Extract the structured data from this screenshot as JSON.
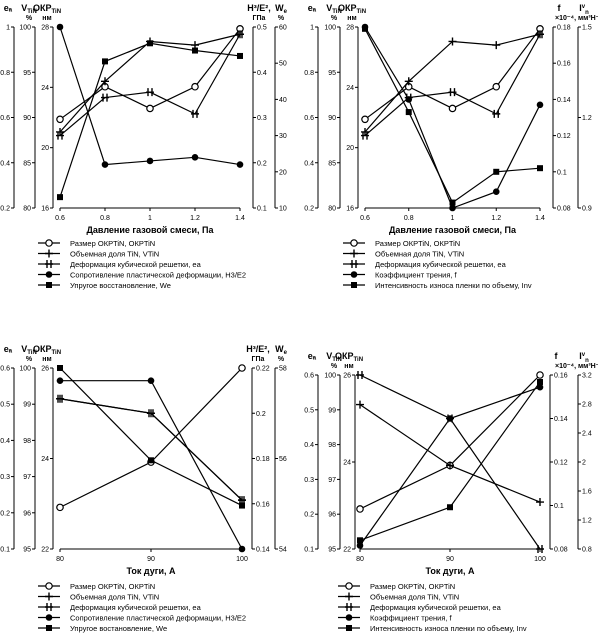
{
  "chart_data": [
    {
      "type": "line",
      "xlabel": "Давление газовой смеси, Па",
      "x": [
        0.6,
        0.8,
        1,
        1.2,
        1.4
      ],
      "xticks": [
        "0.6",
        "0.8",
        "1",
        "1.2",
        "1.4"
      ],
      "left_axes": [
        {
          "label": "eₐ",
          "ticks": [
            "0.2",
            "0.4",
            "0.6",
            "0.8",
            "1"
          ]
        },
        {
          "label": "V",
          "sub": "TiN",
          "unit": "%",
          "ticks": [
            "80",
            "85",
            "90",
            "95",
            "100"
          ]
        },
        {
          "label": "ОКР",
          "sub": "TiN",
          "unit": "нм",
          "ticks": [
            "16",
            "20",
            "24",
            "28"
          ]
        }
      ],
      "right_axes": [
        {
          "label": "H³/E²,",
          "unit": "ГПа",
          "ticks": [
            "0.1",
            "0.2",
            "0.3",
            "0.4",
            "0.5"
          ]
        },
        {
          "label": "W",
          "sub": "e",
          "unit": "%",
          "ticks": [
            "10",
            "20",
            "30",
            "40",
            "50",
            "60"
          ]
        }
      ],
      "series": [
        {
          "name": "Размер ОКРTiN, ОКРTiN",
          "marker": "open-circle",
          "values": [
            0.49,
            0.67,
            0.55,
            0.67,
            0.99
          ]
        },
        {
          "name": "Объемная доля TiN, VTiN",
          "marker": "tick",
          "values": [
            0.42,
            0.7,
            0.92,
            0.9,
            0.96
          ]
        },
        {
          "name": "Деформация кубической решетки, ea",
          "marker": "double-tick",
          "values": [
            0.4,
            0.61,
            0.64,
            0.52,
            0.96
          ]
        },
        {
          "name": "Сопротивление пластической деформации, H3/E2",
          "marker": "filled-circle",
          "values": [
            1.0,
            0.24,
            0.26,
            0.28,
            0.24
          ]
        },
        {
          "name": "Упругое восстановление, We",
          "marker": "filled-square",
          "values": [
            0.06,
            0.81,
            0.91,
            0.87,
            0.84
          ]
        }
      ]
    },
    {
      "type": "line",
      "xlabel": "Давление газовой смеси, Па",
      "x": [
        0.6,
        0.8,
        1,
        1.2,
        1.4
      ],
      "xticks": [
        "0.6",
        "0.8",
        "1",
        "1.2",
        "1.4"
      ],
      "left_axes": [
        {
          "label": "eₐ",
          "ticks": [
            "0.2",
            "0.4",
            "0.6",
            "0.8",
            "1"
          ]
        },
        {
          "label": "V",
          "sub": "TiN",
          "unit": "%",
          "ticks": [
            "80",
            "85",
            "90",
            "95",
            "100"
          ]
        },
        {
          "label": "ОКР",
          "sub": "TiN",
          "unit": "нм",
          "ticks": [
            "16",
            "20",
            "24",
            "28"
          ]
        }
      ],
      "right_axes": [
        {
          "label": "f",
          "ticks": [
            "0.08",
            "0.1",
            "0.12",
            "0.14",
            "0.16",
            "0.18"
          ]
        },
        {
          "label": "I",
          "sub": "n",
          "sup": "v",
          "unit": "×10⁻⁴, мм³Н⁻¹м⁻¹",
          "ticks": [
            "0.9",
            "1.2",
            "1.5"
          ]
        }
      ],
      "series": [
        {
          "name": "Размер ОКРTiN, ОКРTiN",
          "marker": "open-circle",
          "values": [
            0.49,
            0.67,
            0.55,
            0.67,
            0.99
          ]
        },
        {
          "name": "Объемная доля TiN, VTiN",
          "marker": "tick",
          "values": [
            0.42,
            0.7,
            0.92,
            0.9,
            0.96
          ]
        },
        {
          "name": "Деформация кубической решетки, ea",
          "marker": "double-tick",
          "values": [
            0.4,
            0.61,
            0.64,
            0.52,
            0.96
          ]
        },
        {
          "name": "Коэффициент трения, f",
          "marker": "filled-circle",
          "values": [
            1.0,
            0.6,
            0.0,
            0.09,
            0.57
          ]
        },
        {
          "name": "Интенсивность износа пленки по объему, Inv",
          "marker": "filled-square",
          "values": [
            0.99,
            0.53,
            0.03,
            0.2,
            0.22
          ]
        }
      ]
    },
    {
      "type": "line",
      "xlabel": "Ток дуги, А",
      "x": [
        80,
        90,
        100
      ],
      "xticks": [
        "80",
        "90",
        "100"
      ],
      "left_axes": [
        {
          "label": "eₐ",
          "ticks": [
            "0.1",
            "0.2",
            "0.3",
            "0.4",
            "0.5",
            "0.6"
          ]
        },
        {
          "label": "V",
          "sub": "TiN",
          "unit": "%",
          "ticks": [
            "95",
            "96",
            "97",
            "98",
            "99",
            "100"
          ]
        },
        {
          "label": "ОКР",
          "sub": "TiN",
          "unit": "нм",
          "ticks": [
            "22",
            "24",
            "26"
          ]
        }
      ],
      "right_axes": [
        {
          "label": "H³/E²,",
          "unit": "ГПа",
          "ticks": [
            "0.14",
            "0.16",
            "0.18",
            "0.2",
            "0.22"
          ]
        },
        {
          "label": "W",
          "sub": "e",
          "unit": "%",
          "ticks": [
            "54",
            "56",
            "58"
          ]
        }
      ],
      "series": [
        {
          "name": "Размер ОКРTiN, ОКРTiN",
          "marker": "open-circle",
          "values": [
            0.23,
            0.48,
            1.0
          ]
        },
        {
          "name": "Объемная доля TiN, VTiN",
          "marker": "tick",
          "values": [
            0.83,
            0.75,
            0.27
          ]
        },
        {
          "name": "Деформация кубической решетки, ea",
          "marker": "double-tick",
          "values": [
            0.83,
            0.75,
            0.27
          ]
        },
        {
          "name": "Сопротивление пластической деформации, H3/E2",
          "marker": "filled-circle",
          "values": [
            0.93,
            0.93,
            0.0
          ]
        },
        {
          "name": "Упругое востановление, We",
          "marker": "filled-square",
          "values": [
            1.0,
            0.49,
            0.24
          ]
        }
      ]
    },
    {
      "type": "line",
      "xlabel": "Ток дуги, А",
      "x": [
        80,
        90,
        100
      ],
      "xticks": [
        "80",
        "90",
        "100"
      ],
      "left_axes": [
        {
          "label": "eₐ",
          "ticks": [
            "0.1",
            "0.2",
            "0.3",
            "0.4",
            "0.5",
            "0.6"
          ]
        },
        {
          "label": "V",
          "sub": "TiN",
          "unit": "%",
          "ticks": [
            "95",
            "96",
            "97",
            "98",
            "99",
            "100"
          ]
        },
        {
          "label": "ОКР",
          "sub": "TiN",
          "unit": "нм",
          "ticks": [
            "22",
            "24",
            "26"
          ]
        }
      ],
      "right_axes": [
        {
          "label": "f",
          "ticks": [
            "0.08",
            "0.1",
            "0.12",
            "0.14",
            "0.16"
          ]
        },
        {
          "label": "I",
          "sub": "n",
          "sup": "v",
          "unit": "×10⁻⁴, мм³Н⁻¹м⁻¹",
          "ticks": [
            "0.8",
            "1.2",
            "1.6",
            "2",
            "2.4",
            "2.8",
            "3.2"
          ]
        }
      ],
      "series": [
        {
          "name": "Размер ОКРTiN, ОКРTiN",
          "marker": "open-circle",
          "values": [
            0.23,
            0.48,
            1.0
          ]
        },
        {
          "name": "Объемная доля TiN, VTiN",
          "marker": "tick",
          "values": [
            0.83,
            0.48,
            0.27
          ]
        },
        {
          "name": "Деформация кубической решетки, ea",
          "marker": "double-tick",
          "values": [
            1.0,
            0.75,
            0.0
          ]
        },
        {
          "name": "Коэффициент трения, f",
          "marker": "filled-circle",
          "values": [
            0.02,
            0.75,
            0.93
          ]
        },
        {
          "name": "Интенсивность износа пленки по объему, Inv",
          "marker": "filled-square",
          "values": [
            0.05,
            0.24,
            0.96
          ]
        }
      ]
    }
  ]
}
